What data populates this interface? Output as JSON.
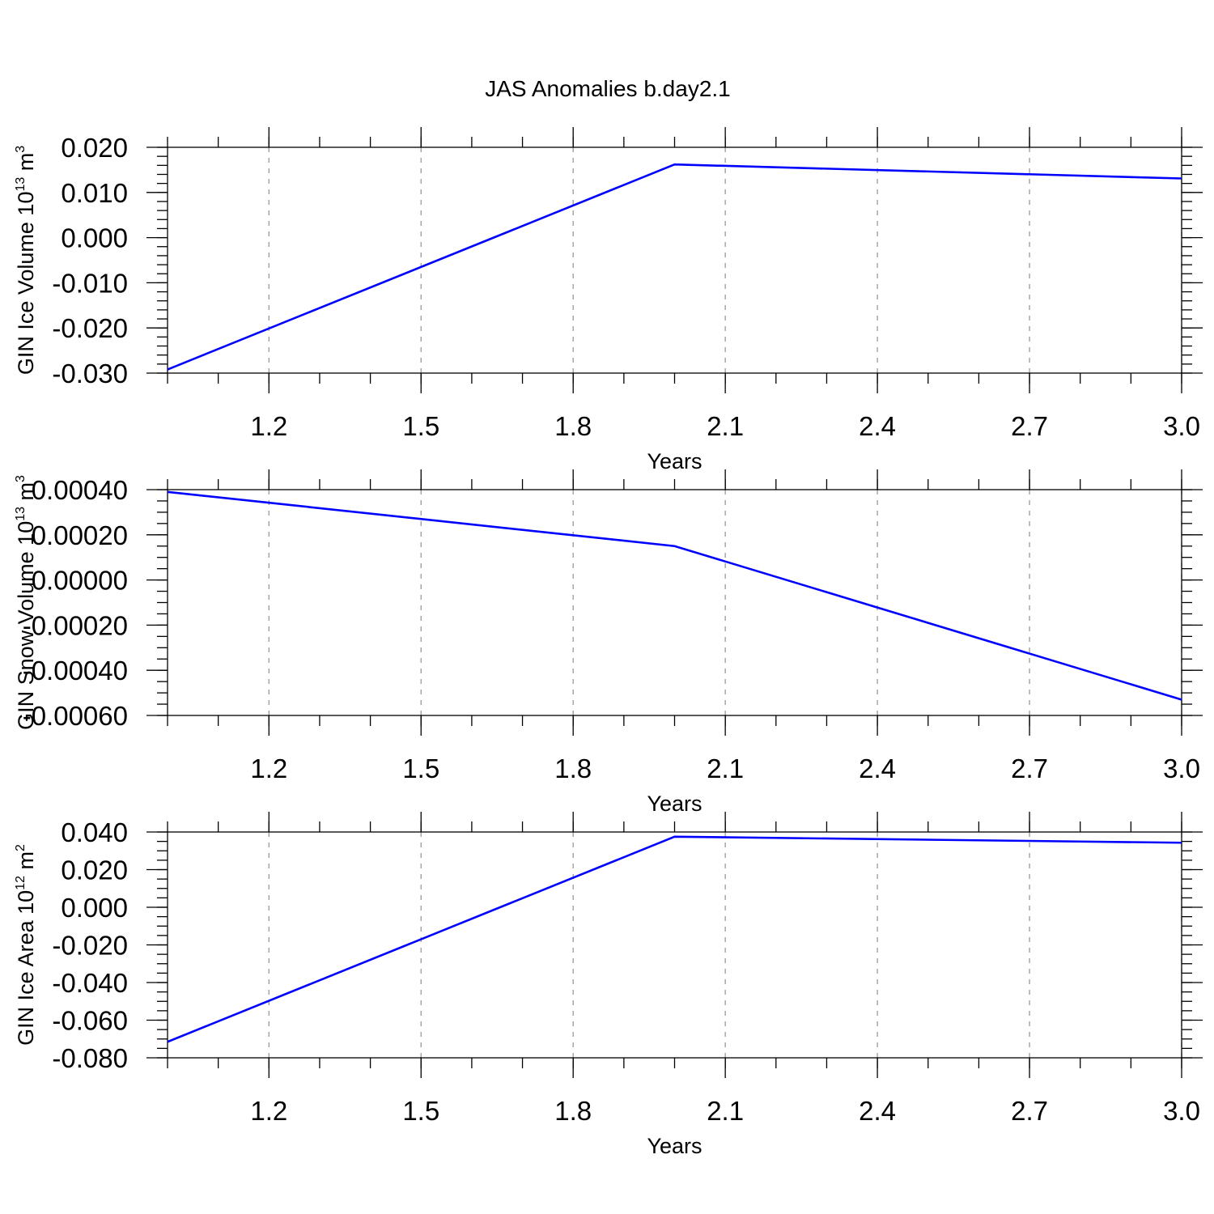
{
  "title": "JAS Anomalies b.day2.1",
  "colors": {
    "series": "#0000ff",
    "grid": "#999999",
    "axis": "#000000"
  },
  "chart_data": [
    {
      "type": "line",
      "ylabel": {
        "main": "GIN Ice Volume 10",
        "sup": "13",
        "unit": " m",
        "unit_sup": "3"
      },
      "xlabel": "Years",
      "xlim": [
        1.0,
        3.0
      ],
      "ylim": [
        -0.03,
        0.02
      ],
      "x_ticks": [
        "1.2",
        "1.5",
        "1.8",
        "2.1",
        "2.4",
        "2.7",
        "3.0"
      ],
      "x_tick_values": [
        1.2,
        1.5,
        1.8,
        2.1,
        2.4,
        2.7,
        3.0
      ],
      "y_ticks": [
        "0.020",
        "0.010",
        "0.000",
        "-0.010",
        "-0.020",
        "-0.030"
      ],
      "y_tick_values": [
        0.02,
        0.01,
        0.0,
        -0.01,
        -0.02,
        -0.03
      ],
      "x_minor_step": 0.1,
      "y_minor_step": 0.002,
      "grid": "x-dashed",
      "series": [
        {
          "x": [
            1.0,
            2.0,
            3.0
          ],
          "y": [
            -0.0292,
            0.0162,
            0.0131
          ]
        }
      ]
    },
    {
      "type": "line",
      "ylabel": {
        "main": "GIN Snow Volume 10",
        "sup": "13",
        "unit": " m",
        "unit_sup": "3"
      },
      "xlabel": "Years",
      "xlim": [
        1.0,
        3.0
      ],
      "ylim": [
        -0.0006,
        0.0004
      ],
      "x_ticks": [
        "1.2",
        "1.5",
        "1.8",
        "2.1",
        "2.4",
        "2.7",
        "3.0"
      ],
      "x_tick_values": [
        1.2,
        1.5,
        1.8,
        2.1,
        2.4,
        2.7,
        3.0
      ],
      "y_ticks": [
        "0.00040",
        "0.00020",
        "0.00000",
        "-0.00020",
        "-0.00040",
        "-0.00060"
      ],
      "y_tick_values": [
        0.0004,
        0.0002,
        0.0,
        -0.0002,
        -0.0004,
        -0.0006
      ],
      "x_minor_step": 0.1,
      "y_minor_step": 5e-05,
      "grid": "x-dashed",
      "series": [
        {
          "x": [
            1.0,
            2.0,
            3.0
          ],
          "y": [
            0.00039,
            0.00015,
            -0.00053
          ]
        }
      ]
    },
    {
      "type": "line",
      "ylabel": {
        "main": "GIN Ice Area 10",
        "sup": "12",
        "unit": " m",
        "unit_sup": "2"
      },
      "xlabel": "Years",
      "xlim": [
        1.0,
        3.0
      ],
      "ylim": [
        -0.08,
        0.04
      ],
      "x_ticks": [
        "1.2",
        "1.5",
        "1.8",
        "2.1",
        "2.4",
        "2.7",
        "3.0"
      ],
      "x_tick_values": [
        1.2,
        1.5,
        1.8,
        2.1,
        2.4,
        2.7,
        3.0
      ],
      "y_ticks": [
        "0.040",
        "0.020",
        "0.000",
        "-0.020",
        "-0.040",
        "-0.060",
        "-0.080"
      ],
      "y_tick_values": [
        0.04,
        0.02,
        0.0,
        -0.02,
        -0.04,
        -0.06,
        -0.08
      ],
      "x_minor_step": 0.1,
      "y_minor_step": 0.005,
      "grid": "x-dashed",
      "series": [
        {
          "x": [
            1.0,
            2.0,
            3.0
          ],
          "y": [
            -0.0715,
            0.0375,
            0.0343
          ]
        }
      ]
    }
  ]
}
